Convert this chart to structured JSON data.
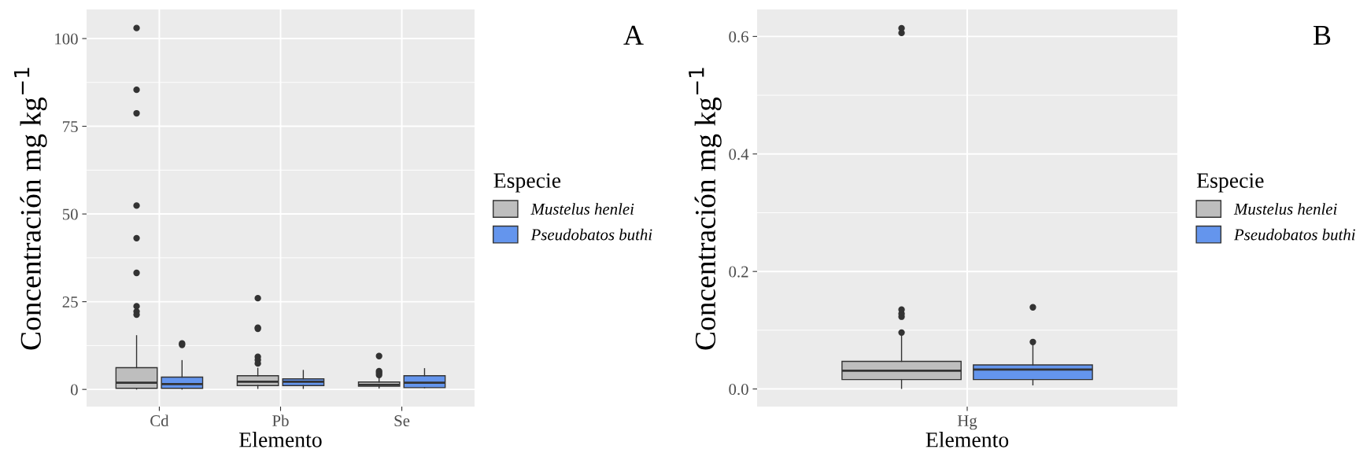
{
  "chart_data": [
    {
      "type": "box",
      "xlabel": "Elemento",
      "ylabel": "Concentración mg kg$^{−1}$",
      "legend_title": "Especie",
      "annotations": [
        "A"
      ],
      "categories": [
        "Cd",
        "Pb",
        "Se"
      ],
      "ylim": [
        -4.9,
        108.3
      ],
      "yticks": [
        0,
        25,
        50,
        75,
        100
      ],
      "grid": true,
      "legend": "right",
      "series": [
        {
          "name": "Mustelus henlei",
          "color": "#bebebe",
          "boxes": [
            {
              "low": 0.1,
              "q1": 0.3,
              "median": 1.9,
              "q3": 6.2,
              "high": 15.3,
              "outliers": [
                103,
                85.4,
                78.7,
                52.4,
                43.1,
                33.2,
                23.7,
                22.2,
                21.3
              ]
            },
            {
              "low": 0.3,
              "q1": 1.1,
              "median": 2.2,
              "q3": 3.9,
              "high": 6.0,
              "outliers": [
                26.0,
                17.6,
                17.3,
                9.3,
                8.4,
                7.4
              ]
            },
            {
              "low": 0.4,
              "q1": 0.9,
              "median": 1.3,
              "q3": 2.1,
              "high": 3.3,
              "outliers": [
                9.5,
                5.2,
                4.7,
                4.1
              ]
            }
          ]
        },
        {
          "name": "Pseudobatos buthi",
          "color": "#6495ed",
          "boxes": [
            {
              "low": 0.1,
              "q1": 0.3,
              "median": 1.5,
              "q3": 3.5,
              "high": 8.2,
              "outliers": [
                13.1,
                12.7
              ]
            },
            {
              "low": 0.3,
              "q1": 1.1,
              "median": 2.2,
              "q3": 3.0,
              "high": 5.4
            },
            {
              "low": 0.5,
              "q1": 0.5,
              "median": 1.9,
              "q3": 3.9,
              "high": 5.9
            }
          ]
        }
      ]
    },
    {
      "type": "box",
      "xlabel": "Elemento",
      "ylabel": "Concentración mg kg$^{−1}$",
      "legend_title": "Especie",
      "annotations": [
        "B"
      ],
      "categories": [
        "Hg"
      ],
      "ylim": [
        -0.03,
        0.646
      ],
      "yticks": [
        {
          "value": 0,
          "label": "0.0"
        },
        0.2,
        0.4,
        0.6
      ],
      "grid": true,
      "legend": "right",
      "series": [
        {
          "name": "Mustelus henlei",
          "color": "#bebebe",
          "boxes": [
            {
              "low": 0.001,
              "q1": 0.016,
              "median": 0.031,
              "q3": 0.047,
              "high": 0.092,
              "outliers": [
                0.096,
                0.123,
                0.128,
                0.135,
                0.606,
                0.614
              ]
            }
          ]
        },
        {
          "name": "Pseudobatos buthi",
          "color": "#6495ed",
          "boxes": [
            {
              "low": 0.007,
              "q1": 0.016,
              "median": 0.033,
              "q3": 0.041,
              "high": 0.077,
              "outliers": [
                0.08,
                0.139
              ]
            }
          ]
        }
      ]
    }
  ]
}
